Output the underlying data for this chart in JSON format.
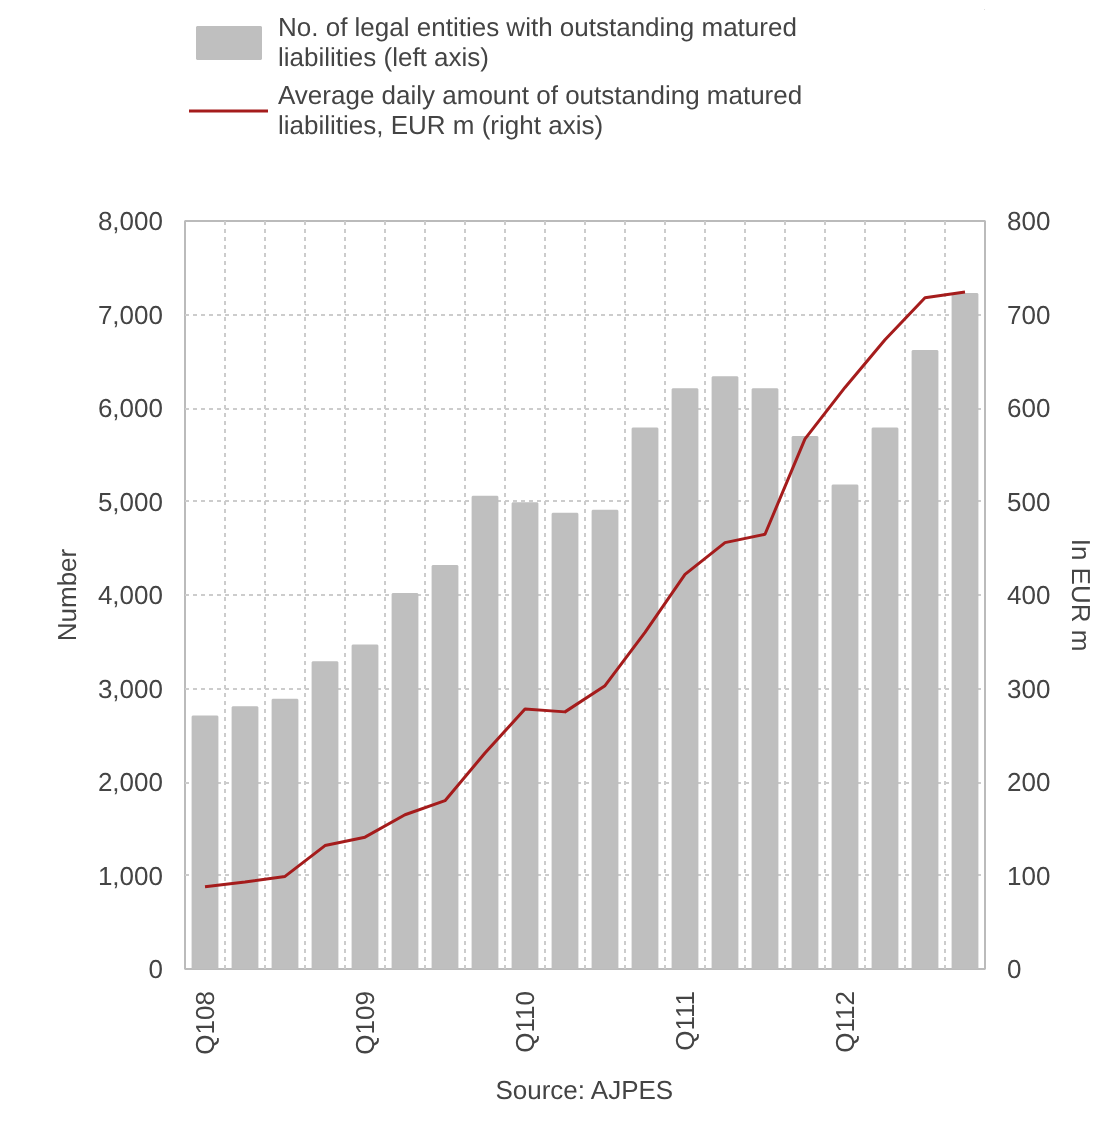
{
  "chart_data": {
    "type": "bar",
    "xlabel": null,
    "ylabel": "Number",
    "y2label": "In EUR m",
    "categories": [
      "Q108",
      null,
      null,
      null,
      "Q109",
      null,
      null,
      null,
      "Q110",
      null,
      null,
      null,
      "Q111",
      null,
      null,
      null,
      "Q112",
      null,
      null,
      null
    ],
    "series": [
      {
        "name": "No. of legal entities with outstanding matured liabilities (left axis)",
        "type": "bar",
        "color": "#bfbfbf",
        "values": [
          2700,
          2800,
          2880,
          3280,
          3460,
          4010,
          4310,
          5050,
          4980,
          4870,
          4900,
          5780,
          6200,
          6330,
          6200,
          5690,
          5170,
          5780,
          6610,
          7220
        ]
      },
      {
        "name": "Average daily amount of outstanding matured liabilities, EUR m (right axis)",
        "type": "line",
        "axis": "y2",
        "color": "#a51c1c",
        "values": [
          88,
          93,
          99,
          132,
          141,
          165,
          180,
          231,
          278,
          275,
          303,
          360,
          422,
          456,
          465,
          567,
          622,
          673,
          718,
          724
        ]
      }
    ],
    "ylim": [
      0,
      8000
    ],
    "yticks": [
      {
        "value": 0,
        "label": "0"
      },
      {
        "value": 1000,
        "label": "1,000"
      },
      {
        "value": 2000,
        "label": "2,000"
      },
      {
        "value": 3000,
        "label": "3,000"
      },
      {
        "value": 4000,
        "label": "4,000"
      },
      {
        "value": 5000,
        "label": "5,000"
      },
      {
        "value": 6000,
        "label": "6,000"
      },
      {
        "value": 7000,
        "label": "7,000"
      },
      {
        "value": 8000,
        "label": "8,000"
      }
    ],
    "y2lim": [
      0,
      800
    ],
    "y2ticks": [
      0,
      100,
      200,
      300,
      400,
      500,
      600,
      700,
      800
    ],
    "grid": true,
    "legend": "top",
    "marker": "none",
    "line_style": "solid",
    "annotations": [
      "Source: AJPES"
    ]
  }
}
